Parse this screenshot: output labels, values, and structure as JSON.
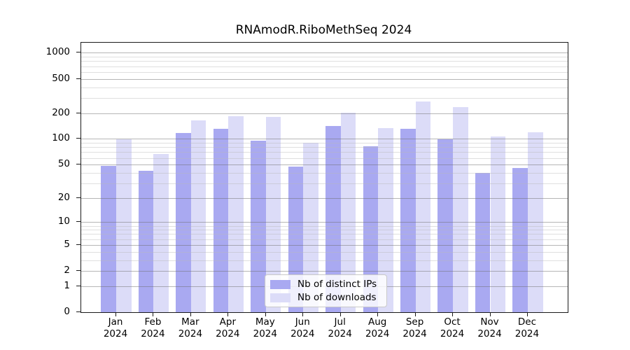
{
  "title": "RNAmodR.RiboMethSeq 2024",
  "colors": {
    "ips_bar": "#a9a9f1",
    "downloads_bar": "#dcdcf8",
    "grid_major": "rgba(110,110,110,0.50)",
    "grid_minor": "rgba(185,185,185,0.45)",
    "axis": "#1a1a1a",
    "text": "#000000",
    "legend_border": "#c9c9c9",
    "legend_bg": "rgba(255,255,255,0.82)"
  },
  "legend": {
    "items": [
      {
        "label": "Nb of distinct IPs",
        "color_key": "ips_bar"
      },
      {
        "label": "Nb of downloads",
        "color_key": "downloads_bar"
      }
    ]
  },
  "chart_data": {
    "type": "bar",
    "title": "RNAmodR.RiboMethSeq 2024",
    "year": "2024",
    "categories": [
      "Jan",
      "Feb",
      "Mar",
      "Apr",
      "May",
      "Jun",
      "Jul",
      "Aug",
      "Sep",
      "Oct",
      "Nov",
      "Dec"
    ],
    "series": [
      {
        "name": "Nb of distinct IPs",
        "values": [
          48,
          42,
          118,
          132,
          96,
          47,
          142,
          82,
          131,
          100,
          40,
          46
        ]
      },
      {
        "name": "Nb of downloads",
        "values": [
          100,
          67,
          164,
          183,
          181,
          91,
          204,
          133,
          272,
          236,
          107,
          120
        ]
      }
    ],
    "xlabel": "",
    "ylabel": "",
    "y_scale": "log10(1+x)",
    "y_ticks": [
      1000,
      500,
      200,
      100,
      50,
      20,
      10,
      5,
      2,
      1,
      0
    ],
    "y_minor_ticks": [
      3,
      4,
      6,
      7,
      8,
      9,
      30,
      40,
      60,
      70,
      80,
      90,
      300,
      400,
      600,
      700,
      800,
      900
    ],
    "ylim": [
      0,
      1300
    ],
    "grid": "on",
    "legend_position": "inside-bottom-center"
  }
}
